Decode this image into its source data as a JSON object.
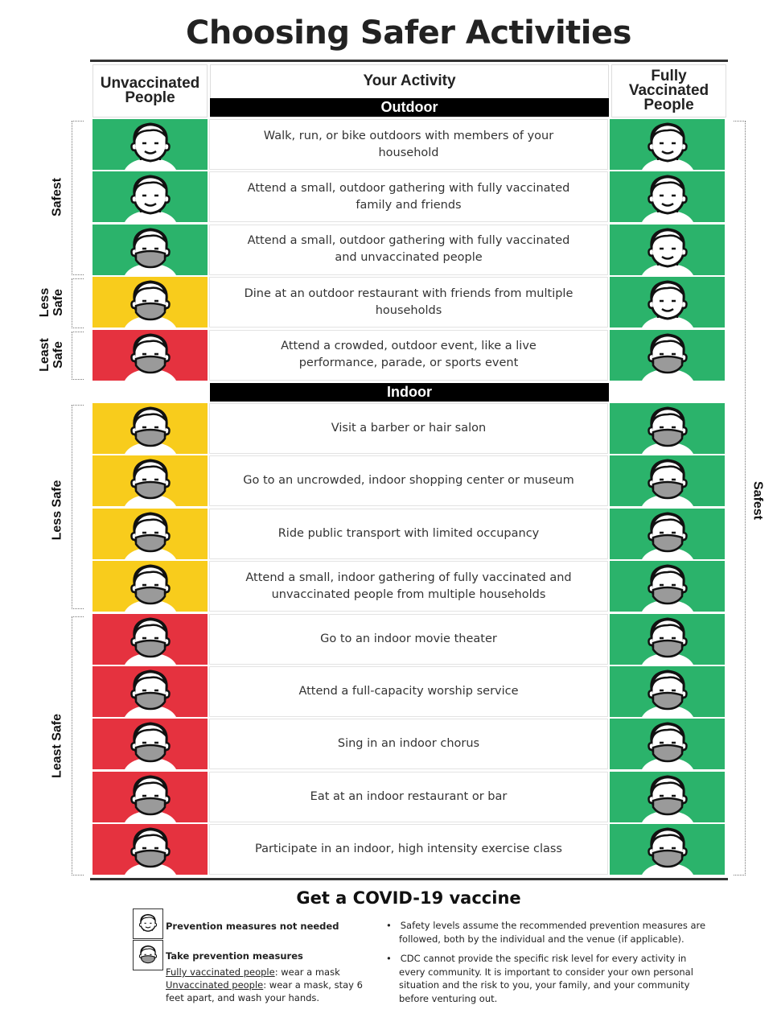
{
  "title": "Choosing Safer Activities",
  "headers": {
    "unvaccinated": "Unvaccinated People",
    "activity": "Your Activity",
    "vaccinated": "Fully Vaccinated People"
  },
  "sections": {
    "outdoor": "Outdoor",
    "indoor": "Indoor"
  },
  "colors": {
    "safest": "#2bb36b",
    "less_safe": "#f8cc1c",
    "least_safe": "#e5323f"
  },
  "icons": {
    "no_mask": "face-icon",
    "mask": "face-mask-icon"
  },
  "side_labels": {
    "outdoor": [
      "Safest",
      "Less Safe",
      "Least Safe"
    ],
    "indoor": [
      "Less Safe",
      "Least Safe"
    ],
    "vaccinated": "Safest"
  },
  "outdoor_rows": [
    {
      "activity": "Walk, run, or bike outdoors with members of your household",
      "unvax_level": "safest",
      "unvax_mask": false,
      "vax_level": "safest",
      "vax_mask": false
    },
    {
      "activity": "Attend a small, outdoor gathering with fully vaccinated family and friends",
      "unvax_level": "safest",
      "unvax_mask": false,
      "vax_level": "safest",
      "vax_mask": false
    },
    {
      "activity": "Attend a small, outdoor gathering with fully vaccinated and unvaccinated people",
      "unvax_level": "safest",
      "unvax_mask": true,
      "vax_level": "safest",
      "vax_mask": false
    },
    {
      "activity": "Dine at an outdoor restaurant with friends from multiple households",
      "unvax_level": "less_safe",
      "unvax_mask": true,
      "vax_level": "safest",
      "vax_mask": false
    },
    {
      "activity": "Attend a crowded, outdoor event, like a live performance, parade, or sports event",
      "unvax_level": "least_safe",
      "unvax_mask": true,
      "vax_level": "safest",
      "vax_mask": true
    }
  ],
  "indoor_rows": [
    {
      "activity": "Visit a barber or hair salon",
      "unvax_level": "less_safe",
      "unvax_mask": true,
      "vax_level": "safest",
      "vax_mask": true
    },
    {
      "activity": "Go to an uncrowded, indoor shopping center or museum",
      "unvax_level": "less_safe",
      "unvax_mask": true,
      "vax_level": "safest",
      "vax_mask": true
    },
    {
      "activity": "Ride public transport with limited occupancy",
      "unvax_level": "less_safe",
      "unvax_mask": true,
      "vax_level": "safest",
      "vax_mask": true
    },
    {
      "activity": "Attend a small, indoor gathering of fully vaccinated and unvaccinated people from multiple households",
      "unvax_level": "less_safe",
      "unvax_mask": true,
      "vax_level": "safest",
      "vax_mask": true
    },
    {
      "activity": "Go to an indoor movie theater",
      "unvax_level": "least_safe",
      "unvax_mask": true,
      "vax_level": "safest",
      "vax_mask": true
    },
    {
      "activity": "Attend a full-capacity worship service",
      "unvax_level": "least_safe",
      "unvax_mask": true,
      "vax_level": "safest",
      "vax_mask": true
    },
    {
      "activity": "Sing in an indoor chorus",
      "unvax_level": "least_safe",
      "unvax_mask": true,
      "vax_level": "safest",
      "vax_mask": true
    },
    {
      "activity": "Eat at an indoor restaurant or bar",
      "unvax_level": "least_safe",
      "unvax_mask": true,
      "vax_level": "safest",
      "vax_mask": true
    },
    {
      "activity": "Participate in an indoor, high intensity exercise class",
      "unvax_level": "least_safe",
      "unvax_mask": true,
      "vax_level": "safest",
      "vax_mask": true
    }
  ],
  "footer": {
    "heading": "Get a COVID-19 vaccine",
    "legend_no_mask": "Prevention measures not needed",
    "legend_mask": "Take prevention measures",
    "vax_label": "Fully vaccinated people",
    "vax_text": ": wear a mask",
    "unvax_label": "Unvaccinated people",
    "unvax_text": ": wear a mask, stay 6 feet apart, and wash your hands.",
    "bullets": [
      "Safety levels assume the recommended prevention measures are followed, both by the individual and the venue (if applicable).",
      "CDC cannot provide the specific risk level for every activity in every community. It is important to consider your own personal situation and the risk to you, your family, and your community before venturing out."
    ]
  }
}
